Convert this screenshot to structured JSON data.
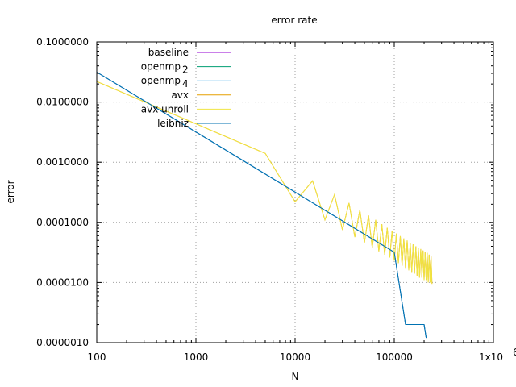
{
  "chart_data": {
    "type": "line",
    "title": "error rate",
    "xlabel": "N",
    "ylabel": "error",
    "xscale": "log",
    "yscale": "log",
    "xlim": [
      100,
      1000000
    ],
    "ylim": [
      1e-06,
      0.1
    ],
    "x_ticks": [
      {
        "value": 100,
        "label": "100"
      },
      {
        "value": 1000,
        "label": "1000"
      },
      {
        "value": 10000,
        "label": "10000"
      },
      {
        "value": 100000,
        "label": "100000"
      }
    ],
    "x_last_tick": {
      "value": 1000000,
      "base": "1x10",
      "exp": "6"
    },
    "y_ticks": [
      {
        "value": 0.1,
        "label": "0.1000000"
      },
      {
        "value": 0.01,
        "label": "0.0100000"
      },
      {
        "value": 0.001,
        "label": "0.0010000"
      },
      {
        "value": 0.0001,
        "label": "0.0001000"
      },
      {
        "value": 1e-05,
        "label": "0.0000100"
      },
      {
        "value": 1e-06,
        "label": "0.0000010"
      }
    ],
    "grid": true,
    "legend_position": "top-left",
    "series": [
      {
        "name": "baseline",
        "legend_label": "baseline",
        "color": "#9400d3",
        "dashed": false,
        "x": [
          100,
          1000,
          10000,
          20000,
          30000,
          50000,
          60000,
          70000,
          80000,
          90000,
          100000,
          130000,
          200000,
          210000
        ],
        "y": [
          0.0314,
          0.00318,
          0.000318,
          0.000159,
          0.000106,
          6.37e-05,
          5.31e-05,
          4.55e-05,
          3.98e-05,
          3.54e-05,
          3.18e-05,
          2e-06,
          2e-06,
          1.2e-06
        ]
      },
      {
        "name": "openmp 2",
        "legend_label": "openmp",
        "legend_sub": "2",
        "color": "#009e73",
        "dashed": false,
        "x": [
          100,
          1000,
          10000,
          20000,
          30000,
          50000,
          60000,
          70000,
          80000,
          90000,
          100000,
          130000,
          200000,
          210000
        ],
        "y": [
          0.0314,
          0.00318,
          0.000318,
          0.000159,
          0.000106,
          6.37e-05,
          5.31e-05,
          4.55e-05,
          3.98e-05,
          3.54e-05,
          3.18e-05,
          2e-06,
          2e-06,
          1.2e-06
        ]
      },
      {
        "name": "openmp 4",
        "legend_label": "openmp",
        "legend_sub": "4",
        "color": "#56b4e9",
        "dashed": false,
        "x": [
          100,
          1000,
          10000,
          20000,
          30000,
          50000,
          60000,
          70000,
          80000,
          90000,
          100000,
          130000,
          200000,
          210000
        ],
        "y": [
          0.0314,
          0.00318,
          0.000318,
          0.000159,
          0.000106,
          6.37e-05,
          5.31e-05,
          4.55e-05,
          3.98e-05,
          3.54e-05,
          3.18e-05,
          2e-06,
          2e-06,
          1.2e-06
        ]
      },
      {
        "name": "avx",
        "legend_label": "avx",
        "color": "#e69f00",
        "dashed": false,
        "x": [
          100,
          5000,
          10000,
          15000,
          20000,
          25000,
          30000,
          35000,
          40000,
          45000,
          50000,
          55000,
          60000,
          65000,
          70000,
          75000,
          80000,
          85000,
          90000,
          95000,
          100000,
          105000,
          110000,
          115000,
          120000,
          125000,
          130000,
          135000,
          140000,
          145000,
          150000,
          155000,
          160000,
          165000,
          170000,
          175000,
          180000,
          185000,
          190000,
          195000,
          200000,
          205000,
          210000,
          215000,
          220000,
          225000,
          230000,
          235000,
          240000
        ],
        "y": [
          0.022,
          0.0014,
          0.00022,
          0.00049,
          0.00011,
          0.00029,
          7.5e-05,
          0.00021,
          5.7e-05,
          0.00016,
          4.6e-05,
          0.00013,
          3.8e-05,
          0.00011,
          3.3e-05,
          9.3e-05,
          2.9e-05,
          8.1e-05,
          2.6e-05,
          7.2e-05,
          2.3e-05,
          6.5e-05,
          2.1e-05,
          5.9e-05,
          1.9e-05,
          5.4e-05,
          1.7e-05,
          5e-05,
          1.6e-05,
          4.6e-05,
          1.5e-05,
          4.3e-05,
          1.4e-05,
          4e-05,
          1.3e-05,
          3.8e-05,
          1.2e-05,
          3.6e-05,
          1.2e-05,
          3.4e-05,
          1.1e-05,
          3.2e-05,
          1.1e-05,
          3.1e-05,
          1e-05,
          2.9e-05,
          1e-05,
          2.8e-05,
          9.5e-06
        ]
      },
      {
        "name": "avx unroll",
        "legend_label": "avx unroll",
        "color": "#f0e442",
        "dashed": false,
        "x": [
          100,
          5000,
          10000,
          15000,
          20000,
          25000,
          30000,
          35000,
          40000,
          45000,
          50000,
          55000,
          60000,
          65000,
          70000,
          75000,
          80000,
          85000,
          90000,
          95000,
          100000,
          105000,
          110000,
          115000,
          120000,
          125000,
          130000,
          135000,
          140000,
          145000,
          150000,
          155000,
          160000,
          165000,
          170000,
          175000,
          180000,
          185000,
          190000,
          195000,
          200000,
          205000,
          210000,
          215000,
          220000,
          225000,
          230000,
          235000,
          240000
        ],
        "y": [
          0.022,
          0.0014,
          0.00022,
          0.00049,
          0.00011,
          0.00029,
          7.5e-05,
          0.00021,
          5.7e-05,
          0.00016,
          4.6e-05,
          0.00013,
          3.8e-05,
          0.00011,
          3.3e-05,
          9.3e-05,
          2.9e-05,
          8.1e-05,
          2.6e-05,
          7.2e-05,
          2.3e-05,
          6.5e-05,
          2.1e-05,
          5.9e-05,
          1.9e-05,
          5.4e-05,
          1.7e-05,
          5e-05,
          1.6e-05,
          4.6e-05,
          1.5e-05,
          4.3e-05,
          1.4e-05,
          4e-05,
          1.3e-05,
          3.8e-05,
          1.2e-05,
          3.6e-05,
          1.2e-05,
          3.4e-05,
          1.1e-05,
          3.2e-05,
          1.1e-05,
          3.1e-05,
          1e-05,
          2.9e-05,
          1e-05,
          2.8e-05,
          9.5e-06
        ]
      },
      {
        "name": "leibniz",
        "legend_label": "leibniz",
        "color": "#0072b2",
        "dashed": false,
        "x": [
          100,
          1000,
          10000,
          20000,
          30000,
          50000,
          60000,
          70000,
          80000,
          90000,
          100000,
          130000,
          200000,
          210000
        ],
        "y": [
          0.0314,
          0.00318,
          0.000318,
          0.000159,
          0.000106,
          6.37e-05,
          5.31e-05,
          4.55e-05,
          3.98e-05,
          3.54e-05,
          3.18e-05,
          2e-06,
          2e-06,
          1.2e-06
        ]
      }
    ]
  }
}
